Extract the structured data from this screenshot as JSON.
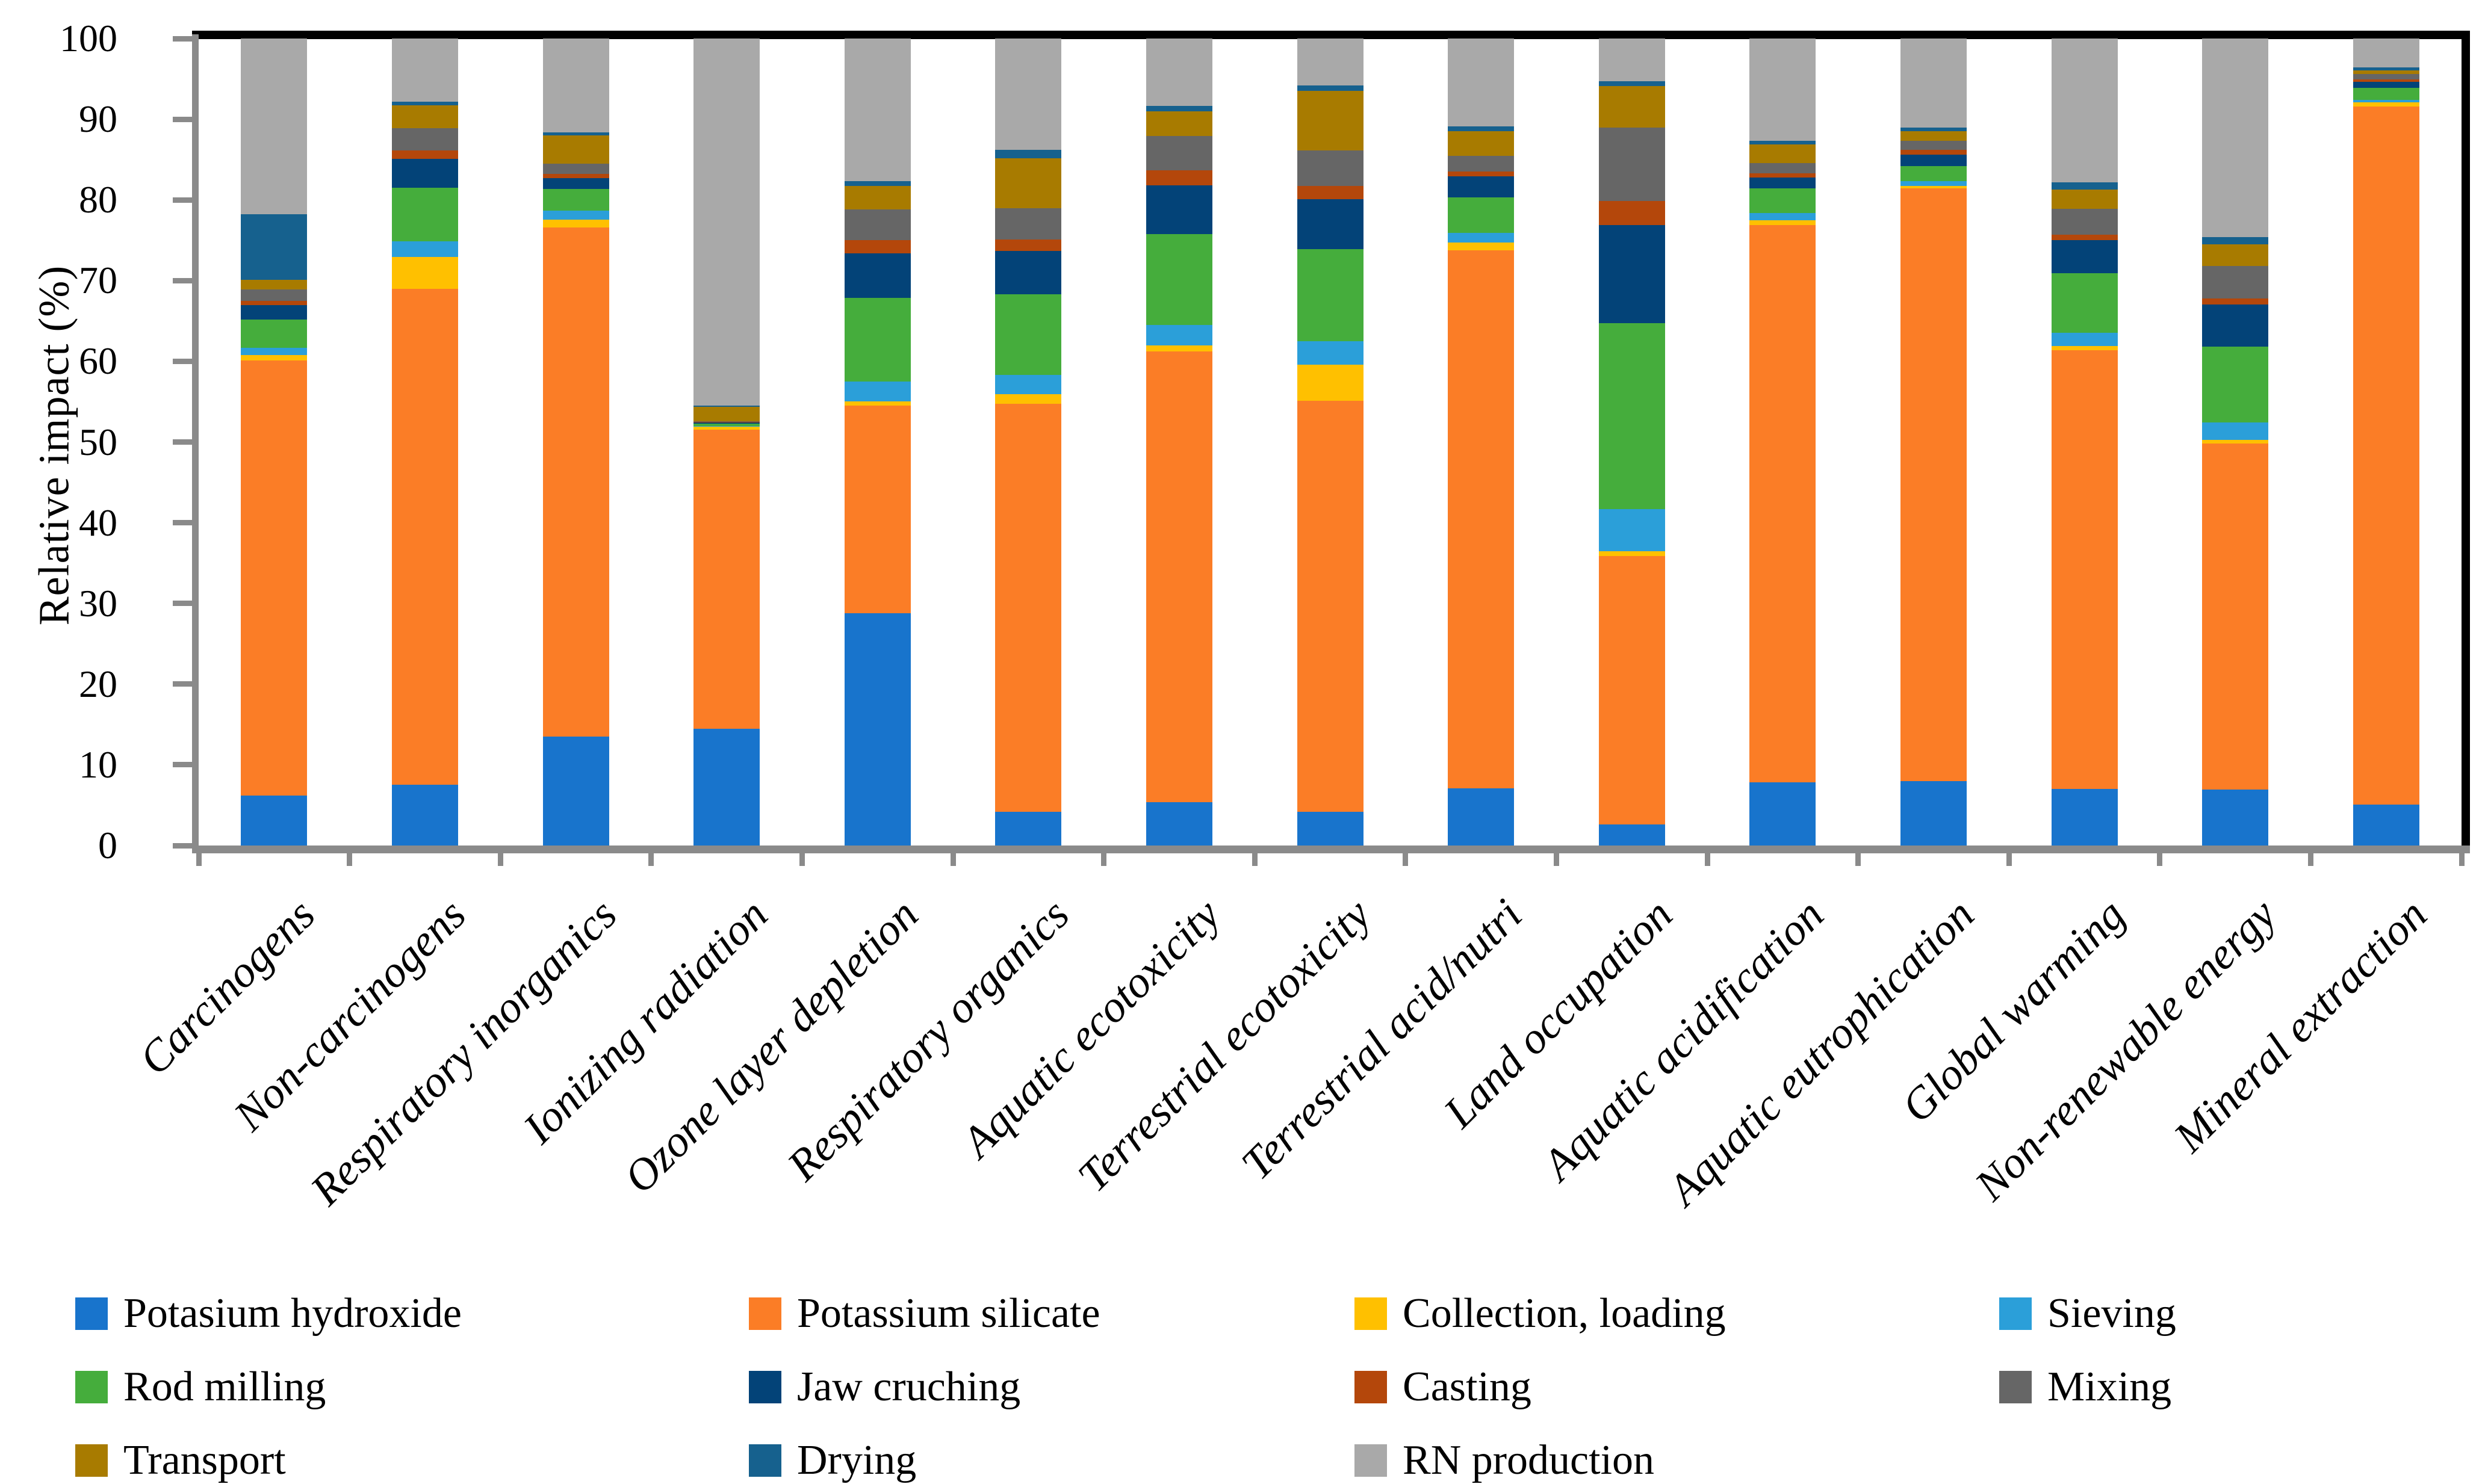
{
  "chart_data": {
    "type": "bar",
    "stacked": true,
    "title": "",
    "xlabel": "",
    "ylabel": "Relative impact (%)",
    "ylim": [
      0,
      100
    ],
    "yticks": [
      0,
      10,
      20,
      30,
      40,
      50,
      60,
      70,
      80,
      90,
      100
    ],
    "grid": false,
    "legend_position": "bottom",
    "categories": [
      "Carcinogens",
      "Non-carcinogens",
      "Respiratory inorganics",
      "Ionizing radiation",
      "Ozone layer depletion",
      "Respiratory organics",
      "Aquatic ecotoxicity",
      "Terrestrial ecotoxicity",
      "Terrestrial acid/nutri",
      "Land occupation",
      "Aquatic acidification",
      "Aquatic eutrophication",
      "Global warming",
      "Non-renewable energy",
      "Mineral extraction"
    ],
    "series": [
      {
        "name": "Potasium hydroxide",
        "color": "#1874CC",
        "values": [
          6.2,
          7.5,
          13.5,
          14.5,
          28.8,
          4.2,
          5.4,
          4.2,
          7.1,
          2.6,
          7.8,
          8.0,
          7.0,
          6.9,
          5.1
        ]
      },
      {
        "name": "Potassium silicate",
        "color": "#FB7D26",
        "values": [
          53.9,
          61.5,
          63.1,
          37.0,
          25.7,
          50.5,
          55.8,
          50.9,
          66.65,
          33.25,
          69.1,
          73.4,
          54.4,
          42.9,
          86.45
        ]
      },
      {
        "name": "Collection, loading",
        "color": "#FFC000",
        "values": [
          0.7,
          3.9,
          0.95,
          0.4,
          0.5,
          1.2,
          0.8,
          4.5,
          0.95,
          0.65,
          0.6,
          0.3,
          0.5,
          0.45,
          0.55
        ]
      },
      {
        "name": "Sieving",
        "color": "#2B9FD9",
        "values": [
          0.9,
          2.0,
          1.15,
          0.1,
          2.5,
          2.4,
          2.5,
          2.9,
          1.2,
          5.2,
          0.9,
          0.6,
          1.6,
          2.2,
          0.3
        ]
      },
      {
        "name": "Rod milling",
        "color": "#45AD3C",
        "values": [
          3.5,
          6.6,
          2.65,
          0.25,
          10.4,
          10.0,
          11.3,
          11.4,
          4.4,
          23.0,
          3.0,
          1.9,
          7.4,
          9.4,
          1.5
        ]
      },
      {
        "name": "Jaw cruching",
        "color": "#034378",
        "values": [
          1.8,
          3.6,
          1.35,
          0.2,
          5.5,
          5.4,
          6.0,
          6.2,
          2.6,
          12.2,
          1.4,
          1.4,
          4.1,
          5.2,
          0.75
        ]
      },
      {
        "name": "Casting",
        "color": "#B4470B",
        "values": [
          0.5,
          1.0,
          0.5,
          0.05,
          1.6,
          1.4,
          1.85,
          1.6,
          0.6,
          3.0,
          0.5,
          0.6,
          0.7,
          0.75,
          0.3
        ]
      },
      {
        "name": "Mixing",
        "color": "#666666",
        "values": [
          1.4,
          2.8,
          1.3,
          0.1,
          3.8,
          3.9,
          4.3,
          4.4,
          2.0,
          9.1,
          1.3,
          1.1,
          3.2,
          4.0,
          0.65
        ]
      },
      {
        "name": "Transport",
        "color": "#A87B00",
        "values": [
          1.2,
          2.8,
          3.5,
          1.8,
          2.9,
          6.2,
          3.0,
          7.4,
          3.0,
          5.1,
          2.3,
          1.2,
          2.4,
          2.7,
          0.45
        ]
      },
      {
        "name": "Drying",
        "color": "#16618E",
        "values": [
          8.1,
          0.5,
          0.4,
          0.15,
          0.6,
          1.0,
          0.7,
          0.7,
          0.6,
          0.6,
          0.45,
          0.5,
          0.9,
          0.9,
          0.4
        ]
      },
      {
        "name": "RN production",
        "color": "#A9A9A9",
        "values": [
          21.8,
          7.8,
          11.6,
          45.45,
          17.7,
          13.8,
          8.35,
          5.8,
          10.9,
          5.3,
          12.65,
          11.0,
          17.8,
          24.6,
          3.55
        ]
      }
    ]
  }
}
